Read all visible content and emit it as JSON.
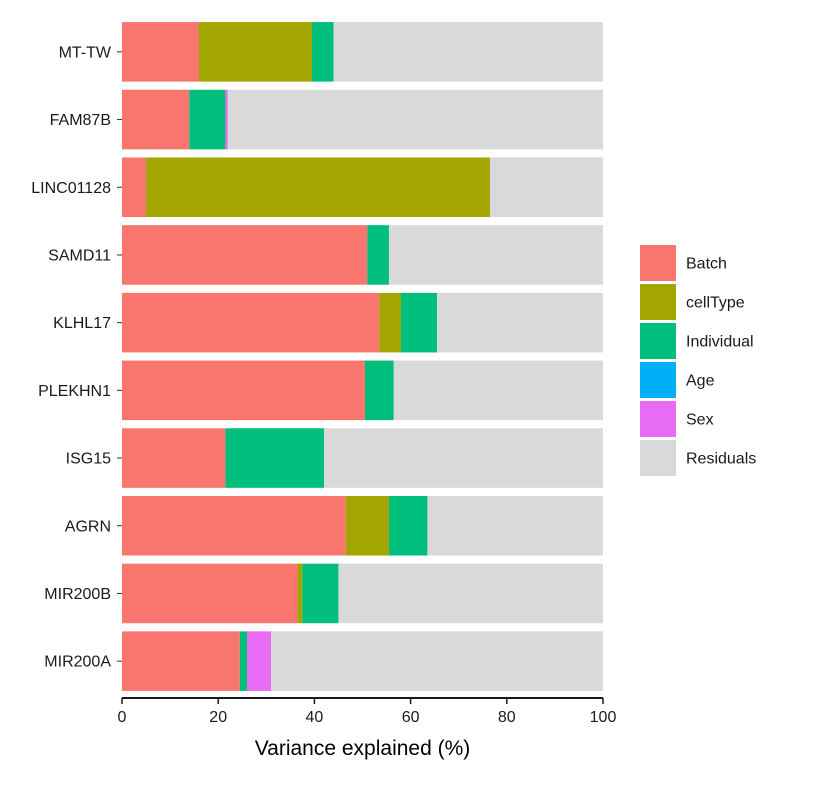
{
  "chart_data": {
    "type": "bar",
    "orientation": "horizontal",
    "stacked": true,
    "title": "",
    "xlabel": "Variance explained (%)",
    "ylabel": "",
    "xlim": [
      0,
      100
    ],
    "xticks": [
      "0",
      "20",
      "40",
      "60",
      "80",
      "100"
    ],
    "categories": [
      "MT-TW",
      "FAM87B",
      "LINC01128",
      "SAMD11",
      "KLHL17",
      "PLEKHN1",
      "ISG15",
      "AGRN",
      "MIR200B",
      "MIR200A"
    ],
    "series": [
      {
        "name": "Batch",
        "color": "#F8766D",
        "values": [
          16.0,
          14.0,
          5.0,
          51.0,
          53.5,
          50.5,
          21.5,
          46.5,
          36.5,
          24.5
        ]
      },
      {
        "name": "cellType",
        "color": "#A3A500",
        "values": [
          23.5,
          0.0,
          71.5,
          0.0,
          4.5,
          0.0,
          0.0,
          9.0,
          1.0,
          0.0
        ]
      },
      {
        "name": "Individual",
        "color": "#00BF7D",
        "values": [
          4.5,
          7.5,
          0.0,
          4.5,
          7.5,
          6.0,
          20.5,
          8.0,
          7.5,
          1.5
        ]
      },
      {
        "name": "Age",
        "color": "#00B0F6",
        "values": [
          0.0,
          0.0,
          0.0,
          0.0,
          0.0,
          0.0,
          0.0,
          0.0,
          0.0,
          0.0
        ]
      },
      {
        "name": "Sex",
        "color": "#E76BF3",
        "values": [
          0.0,
          0.5,
          0.0,
          0.0,
          0.0,
          0.0,
          0.0,
          0.0,
          0.0,
          5.0
        ]
      },
      {
        "name": "Residuals",
        "color": "#D9D9D9",
        "values": [
          56.0,
          78.0,
          23.5,
          44.5,
          34.5,
          43.5,
          58.0,
          36.5,
          55.0,
          69.0
        ]
      }
    ],
    "legend": {
      "position": "right",
      "entries": [
        "Batch",
        "cellType",
        "Individual",
        "Age",
        "Sex",
        "Residuals"
      ]
    },
    "grid": false
  }
}
